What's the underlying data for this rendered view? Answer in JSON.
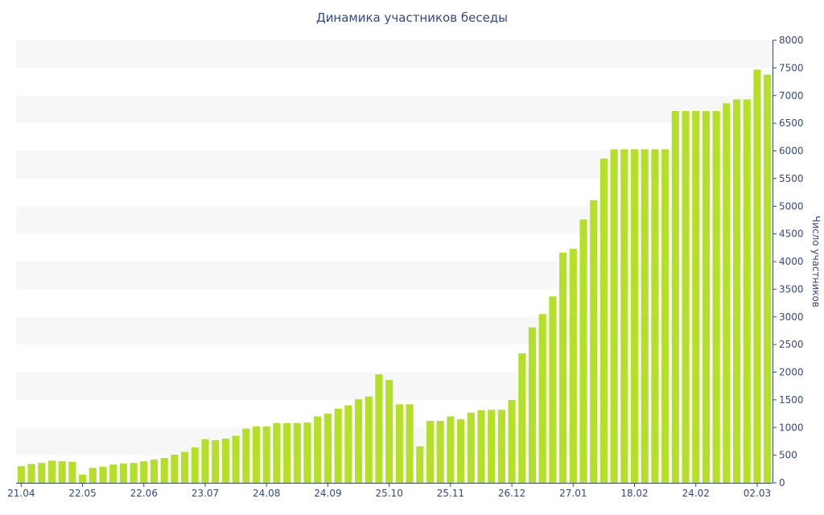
{
  "chart_data": {
    "type": "bar",
    "title": "Динамика участников беседы",
    "xlabel": "",
    "ylabel": "Число участников",
    "ylim": [
      0,
      8000
    ],
    "yticks": [
      0,
      500,
      1000,
      1500,
      2000,
      2500,
      3000,
      3500,
      4000,
      4500,
      5000,
      5500,
      6000,
      6500,
      7000,
      7500,
      8000
    ],
    "y_axis_side": "right",
    "grid": "alternating horizontal bands",
    "legend": "none",
    "bar_color": "#b5e02a",
    "band_color": "#f7f7f7",
    "text_color": "#34488a",
    "x_tick_labels": [
      {
        "index": 0,
        "label": "21.04"
      },
      {
        "index": 6,
        "label": "22.05"
      },
      {
        "index": 12,
        "label": "22.06"
      },
      {
        "index": 18,
        "label": "23.07"
      },
      {
        "index": 24,
        "label": "24.08"
      },
      {
        "index": 30,
        "label": "24.09"
      },
      {
        "index": 36,
        "label": "25.10"
      },
      {
        "index": 42,
        "label": "25.11"
      },
      {
        "index": 48,
        "label": "26.12"
      },
      {
        "index": 54,
        "label": "27.01"
      },
      {
        "index": 60,
        "label": "18.02"
      },
      {
        "index": 66,
        "label": "24.02"
      },
      {
        "index": 72,
        "label": "02.03"
      }
    ],
    "values": [
      300,
      340,
      360,
      400,
      390,
      380,
      150,
      270,
      290,
      330,
      350,
      360,
      390,
      420,
      450,
      510,
      560,
      640,
      790,
      770,
      800,
      850,
      980,
      1020,
      1020,
      1080,
      1080,
      1080,
      1090,
      1200,
      1250,
      1340,
      1400,
      1510,
      1560,
      1960,
      1860,
      1420,
      1420,
      660,
      1120,
      1120,
      1200,
      1150,
      1270,
      1310,
      1320,
      1320,
      1500,
      2340,
      2810,
      3050,
      3370,
      4160,
      4230,
      4760,
      5110,
      5860,
      6030,
      6030,
      6030,
      6030,
      6030,
      6030,
      6720,
      6720,
      6720,
      6720,
      6720,
      6860,
      6930,
      6930,
      7470,
      7380
    ]
  }
}
